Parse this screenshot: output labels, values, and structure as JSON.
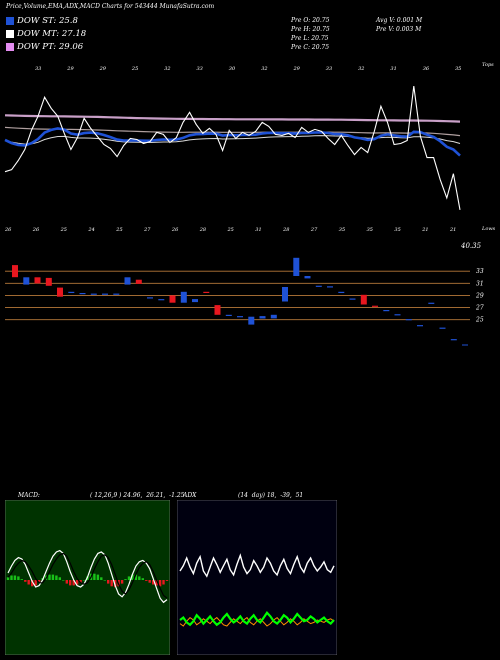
{
  "header": {
    "title": "Price,Volume,EMA,ADX,MACD Charts for 543444  MunafaSutra.com",
    "stats_col1": [
      "Pre  O: 20.75",
      "Pre  H: 20.75",
      "Pre  L: 20.75",
      "Pre  C: 20.75"
    ],
    "stats_col2": [
      "Avg V: 0.001 M",
      "Pre  V: 0.003 M"
    ]
  },
  "legend": [
    {
      "label": "DOW ST: 25.8",
      "color": "#1f52d6"
    },
    {
      "label": "DOW MT: 27.18",
      "color": "#ffffff"
    },
    {
      "label": "DOW PT: 29.06",
      "color": "#e48cf0"
    }
  ],
  "colors": {
    "up": "#1f52d6",
    "down": "#e8171f",
    "ema_fast": "#1f52d6",
    "ema_long": "#c9a0c8",
    "guide": "#b87a3a",
    "price": "#ffffff",
    "adx_di_plus": "#00ff00",
    "adx_di_minus": "#ff8c00",
    "macd_hist_pos": "#19c219",
    "macd_hist_neg": "#e8171f"
  },
  "chart_data": [
    {
      "type": "line",
      "name": "price",
      "label_top": "Tops",
      "label_bottom": "Lows",
      "last_price": "40.35",
      "top_labels": [
        "33",
        "29",
        "29",
        "25",
        "32",
        "33",
        "30",
        "32",
        "29",
        "33",
        "32",
        "31",
        "36",
        "35"
      ],
      "bottom_labels": [
        "26",
        "26",
        "25",
        "24",
        "25",
        "27",
        "26",
        "28",
        "25",
        "31",
        "28",
        "27",
        "35",
        "35",
        "35",
        "21",
        "21"
      ],
      "x": [
        0,
        1,
        2,
        3,
        4,
        5,
        6,
        7,
        8,
        9,
        10,
        11,
        12,
        13,
        14,
        15,
        16,
        17,
        18,
        19,
        20,
        21,
        22,
        23,
        24,
        25,
        26,
        27,
        28,
        29,
        30,
        31,
        32,
        33,
        34,
        35,
        36,
        37,
        38,
        39,
        40,
        41,
        42,
        43,
        44,
        45,
        46,
        47,
        48,
        49,
        50,
        51,
        52,
        53,
        54,
        55,
        56,
        57,
        58,
        59,
        60,
        61,
        62,
        63,
        64,
        65,
        66,
        67,
        68,
        69
      ],
      "close": [
        24.8,
        25.0,
        25.9,
        27.0,
        28.9,
        30.3,
        32.2,
        31.1,
        30.3,
        28.6,
        27.0,
        28.2,
        30.1,
        29.1,
        28.3,
        27.5,
        27.1,
        26.3,
        27.4,
        28.1,
        28.0,
        27.6,
        27.8,
        28.7,
        28.5,
        27.7,
        28.2,
        29.7,
        30.7,
        29.5,
        28.6,
        29.1,
        28.5,
        26.9,
        28.9,
        28.1,
        28.7,
        28.4,
        28.8,
        29.7,
        29.3,
        28.5,
        28.4,
        28.6,
        28.2,
        29.2,
        28.7,
        29.0,
        28.8,
        28.1,
        27.5,
        28.4,
        27.4,
        26.5,
        27.2,
        26.7,
        28.8,
        31.3,
        29.7,
        27.5,
        27.6,
        27.9,
        33.3,
        28.3,
        26.2,
        26.2,
        24.0,
        22.2,
        24.6,
        21.0
      ],
      "ema_fast": [
        27.96,
        27.64,
        27.45,
        27.41,
        27.63,
        28.04,
        28.68,
        28.95,
        29.1,
        28.98,
        28.59,
        28.47,
        28.63,
        28.68,
        28.61,
        28.44,
        28.24,
        27.99,
        27.9,
        27.9,
        27.9,
        27.88,
        27.87,
        27.95,
        28.0,
        27.97,
        27.99,
        28.16,
        28.41,
        28.52,
        28.53,
        28.58,
        28.57,
        28.39,
        28.44,
        28.41,
        28.44,
        28.44,
        28.47,
        28.59,
        28.66,
        28.64,
        28.62,
        28.62,
        28.58,
        28.64,
        28.65,
        28.69,
        28.7,
        28.64,
        28.53,
        28.52,
        28.41,
        28.21,
        28.11,
        27.96,
        28.04,
        28.37,
        28.5,
        28.4,
        28.31,
        28.27,
        28.76,
        28.72,
        28.47,
        28.25,
        27.83,
        27.27,
        27.0,
        26.4
      ],
      "ema_mid": [
        27.88,
        27.74,
        27.62,
        27.54,
        27.56,
        27.72,
        28.0,
        28.17,
        28.29,
        28.3,
        28.21,
        28.15,
        28.15,
        28.14,
        28.1,
        28.03,
        27.94,
        27.83,
        27.76,
        27.74,
        27.73,
        27.71,
        27.7,
        27.73,
        27.75,
        27.75,
        27.78,
        27.85,
        27.96,
        28.03,
        28.06,
        28.09,
        28.1,
        28.05,
        28.06,
        28.07,
        28.09,
        28.11,
        28.14,
        28.19,
        28.24,
        28.25,
        28.26,
        28.28,
        28.28,
        28.31,
        28.33,
        28.36,
        28.38,
        28.37,
        28.34,
        28.33,
        28.29,
        28.23,
        28.19,
        28.12,
        28.12,
        28.19,
        28.23,
        28.21,
        28.18,
        28.16,
        28.26,
        28.27,
        28.22,
        28.16,
        28.05,
        27.89,
        27.79,
        27.6
      ],
      "ema_slow": [
        29.2,
        29.16,
        29.12,
        29.09,
        29.06,
        29.04,
        29.03,
        29.02,
        29.02,
        29.01,
        29.0,
        28.99,
        28.98,
        28.96,
        28.94,
        28.92,
        28.89,
        28.86,
        28.84,
        28.82,
        28.8,
        28.78,
        28.76,
        28.74,
        28.73,
        28.72,
        28.71,
        28.71,
        28.72,
        28.72,
        28.72,
        28.72,
        28.72,
        28.71,
        28.71,
        28.71,
        28.71,
        28.71,
        28.71,
        28.72,
        28.72,
        28.72,
        28.72,
        28.72,
        28.72,
        28.73,
        28.73,
        28.73,
        28.73,
        28.73,
        28.72,
        28.72,
        28.71,
        28.69,
        28.67,
        28.65,
        28.64,
        28.65,
        28.66,
        28.65,
        28.64,
        28.63,
        28.66,
        28.66,
        28.64,
        28.61,
        28.56,
        28.5,
        28.45,
        28.38
      ],
      "ema_long": [
        30.4,
        30.38,
        30.36,
        30.34,
        30.33,
        30.32,
        30.31,
        30.3,
        30.3,
        30.29,
        30.28,
        30.27,
        30.26,
        30.25,
        30.24,
        30.22,
        30.2,
        30.18,
        30.16,
        30.14,
        30.12,
        30.11,
        30.09,
        30.08,
        30.07,
        30.06,
        30.05,
        30.04,
        30.04,
        30.03,
        30.03,
        30.02,
        30.02,
        30.01,
        30.01,
        30.0,
        30.0,
        30.0,
        30.0,
        29.99,
        29.99,
        29.99,
        29.99,
        29.98,
        29.98,
        29.98,
        29.98,
        29.97,
        29.97,
        29.97,
        29.96,
        29.96,
        29.95,
        29.94,
        29.93,
        29.92,
        29.91,
        29.9,
        29.9,
        29.89,
        29.88,
        29.88,
        29.88,
        29.87,
        29.86,
        29.85,
        29.83,
        29.81,
        29.79,
        29.77
      ],
      "guide_levels": [
        "33",
        "31",
        "29",
        "27",
        "25"
      ],
      "candles": [
        {
          "o": 34.0,
          "c": 32.0,
          "dir": "down"
        },
        {
          "o": 32.0,
          "c": 30.8,
          "dir": "up"
        },
        {
          "o": 32.0,
          "c": 31.0,
          "dir": "down"
        },
        {
          "o": 31.9,
          "c": 30.6,
          "dir": "down"
        },
        {
          "o": 30.3,
          "c": 28.8,
          "dir": "down"
        },
        {
          "o": 29.6,
          "c": 29.4,
          "dir": "up"
        },
        {
          "o": 29.4,
          "c": 29.2,
          "dir": "up"
        },
        {
          "o": 29.3,
          "c": 29.1,
          "dir": "up"
        },
        {
          "o": 29.3,
          "c": 29.1,
          "dir": "up"
        },
        {
          "o": 29.3,
          "c": 29.1,
          "dir": "up"
        },
        {
          "o": 32.0,
          "c": 30.8,
          "dir": "up"
        },
        {
          "o": 31.6,
          "c": 30.9,
          "dir": "down"
        },
        {
          "o": 28.7,
          "c": 28.5,
          "dir": "up"
        },
        {
          "o": 28.4,
          "c": 28.2,
          "dir": "up"
        },
        {
          "o": 29.0,
          "c": 27.8,
          "dir": "down"
        },
        {
          "o": 29.6,
          "c": 27.8,
          "dir": "up"
        },
        {
          "o": 28.4,
          "c": 27.9,
          "dir": "up"
        },
        {
          "o": 29.6,
          "c": 29.4,
          "dir": "down"
        },
        {
          "o": 27.4,
          "c": 25.8,
          "dir": "down"
        },
        {
          "o": 25.8,
          "c": 25.6,
          "dir": "up"
        },
        {
          "o": 25.6,
          "c": 25.4,
          "dir": "up"
        },
        {
          "o": 25.5,
          "c": 24.2,
          "dir": "up"
        },
        {
          "o": 25.6,
          "c": 25.2,
          "dir": "up"
        },
        {
          "o": 25.8,
          "c": 25.2,
          "dir": "up"
        },
        {
          "o": 30.4,
          "c": 28.0,
          "dir": "up"
        },
        {
          "o": 35.2,
          "c": 32.2,
          "dir": "up"
        },
        {
          "o": 32.2,
          "c": 31.8,
          "dir": "up"
        },
        {
          "o": 30.6,
          "c": 30.4,
          "dir": "up"
        },
        {
          "o": 30.5,
          "c": 30.3,
          "dir": "up"
        },
        {
          "o": 29.6,
          "c": 29.4,
          "dir": "up"
        },
        {
          "o": 28.5,
          "c": 28.3,
          "dir": "up"
        },
        {
          "o": 29.1,
          "c": 27.5,
          "dir": "down"
        },
        {
          "o": 27.3,
          "c": 27.1,
          "dir": "down"
        },
        {
          "o": 26.6,
          "c": 26.4,
          "dir": "up"
        },
        {
          "o": 25.9,
          "c": 25.7,
          "dir": "up"
        },
        {
          "o": 25.1,
          "c": 24.9,
          "dir": "up"
        },
        {
          "o": 24.1,
          "c": 23.9,
          "dir": "up"
        },
        {
          "o": 27.8,
          "c": 27.6,
          "dir": "up"
        },
        {
          "o": 23.7,
          "c": 23.5,
          "dir": "up"
        },
        {
          "o": 21.8,
          "c": 21.6,
          "dir": "up"
        },
        {
          "o": 20.9,
          "c": 20.75,
          "dir": "up"
        }
      ]
    },
    {
      "type": "line",
      "name": "MACD",
      "title": "MACD:",
      "params": "( 12,26,9 ) 24.96,  26.21,  -1.25",
      "macd": [
        0.5,
        1.0,
        1.4,
        1.6,
        1.5,
        1.1,
        0.5,
        -0.1,
        -0.5,
        -0.4,
        0.0,
        0.6,
        1.2,
        1.7,
        2.0,
        2.1,
        1.9,
        1.3,
        0.6,
        0.0,
        -0.4,
        -0.5,
        -0.3,
        0.2,
        0.9,
        1.5,
        1.9,
        2.0,
        1.8,
        1.2,
        0.4,
        -0.4,
        -1.0,
        -1.2,
        -0.9,
        -0.3,
        0.4,
        1.0,
        1.3,
        1.4,
        1.2,
        0.8,
        0.1,
        -0.6,
        -1.3,
        -1.6,
        -1.4
      ],
      "signal": [
        0.2,
        0.5,
        0.9,
        1.2,
        1.4,
        1.3,
        1.0,
        0.6,
        0.1,
        -0.2,
        -0.2,
        0.1,
        0.6,
        1.1,
        1.5,
        1.8,
        1.9,
        1.7,
        1.2,
        0.6,
        0.1,
        -0.2,
        -0.3,
        -0.2,
        0.2,
        0.8,
        1.3,
        1.7,
        1.8,
        1.6,
        1.1,
        0.4,
        -0.3,
        -0.8,
        -1.0,
        -0.7,
        -0.2,
        0.4,
        0.9,
        1.2,
        1.3,
        1.1,
        0.6,
        0.0,
        -0.6,
        -1.1,
        -1.3
      ],
      "hist": [
        0.3,
        0.5,
        0.5,
        0.4,
        0.1,
        -0.2,
        -0.5,
        -0.7,
        -0.6,
        -0.2,
        0.2,
        0.5,
        0.6,
        0.6,
        0.5,
        0.3,
        0.0,
        -0.4,
        -0.6,
        -0.6,
        -0.5,
        -0.3,
        0.0,
        0.4,
        0.7,
        0.7,
        0.6,
        0.3,
        0.0,
        -0.4,
        -0.7,
        -0.8,
        -0.7,
        -0.4,
        0.1,
        0.4,
        0.6,
        0.6,
        0.4,
        0.2,
        -0.1,
        -0.3,
        -0.5,
        -0.6,
        -0.7,
        -0.5,
        -0.1
      ]
    },
    {
      "type": "line",
      "name": "ADX",
      "title": "ADX",
      "params": "(14  day) 18,  -39,  51",
      "adx": [
        30,
        34,
        40,
        33,
        28,
        36,
        41,
        30,
        26,
        33,
        40,
        35,
        29,
        34,
        39,
        31,
        27,
        35,
        42,
        33,
        28,
        31,
        38,
        34,
        29,
        33,
        40,
        36,
        30,
        27,
        34,
        39,
        32,
        28,
        35,
        41,
        33,
        29,
        36,
        40,
        34,
        30,
        33,
        37,
        31,
        29,
        34
      ],
      "di_plus": [
        10,
        12,
        8,
        6,
        9,
        14,
        11,
        7,
        10,
        13,
        9,
        6,
        8,
        12,
        15,
        11,
        8,
        10,
        13,
        9,
        7,
        11,
        14,
        10,
        8,
        12,
        16,
        13,
        9,
        7,
        10,
        14,
        12,
        8,
        11,
        15,
        12,
        9,
        10,
        13,
        11,
        8,
        10,
        12,
        9,
        7,
        10
      ],
      "di_minus": [
        7,
        5,
        9,
        12,
        10,
        6,
        8,
        11,
        9,
        7,
        10,
        12,
        9,
        6,
        5,
        8,
        11,
        9,
        7,
        10,
        12,
        8,
        6,
        9,
        11,
        8,
        5,
        7,
        10,
        12,
        9,
        6,
        8,
        11,
        9,
        6,
        8,
        11,
        9,
        7,
        8,
        10,
        9,
        8,
        10,
        11,
        9
      ]
    }
  ]
}
